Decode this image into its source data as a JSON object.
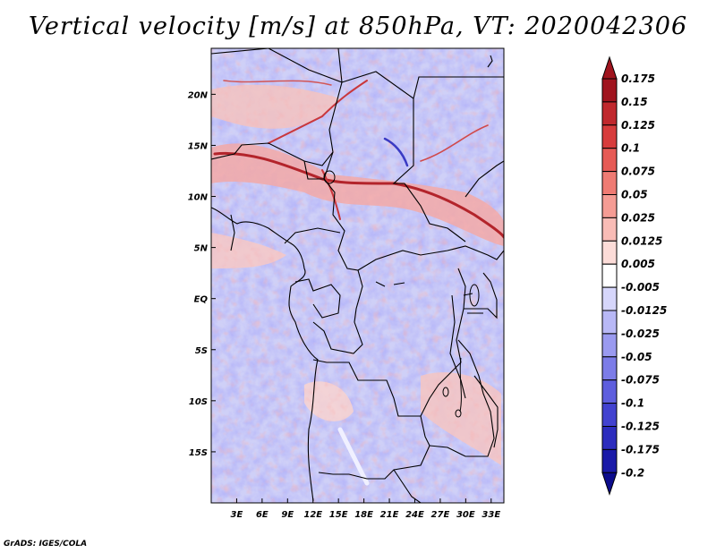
{
  "title": "Vertical velocity [m/s] at 850hPa, VT: 2020042306",
  "credit": "GrADS: IGES/COLA",
  "map": {
    "lat_range": [
      -20,
      24.5
    ],
    "lon_range": [
      0,
      34.5
    ],
    "lat_ticks": [
      {
        "label": "20N",
        "value": 20
      },
      {
        "label": "15N",
        "value": 15
      },
      {
        "label": "10N",
        "value": 10
      },
      {
        "label": "5N",
        "value": 5
      },
      {
        "label": "EQ",
        "value": 0
      },
      {
        "label": "5S",
        "value": -5
      },
      {
        "label": "10S",
        "value": -10
      },
      {
        "label": "15S",
        "value": -15
      }
    ],
    "lon_ticks": [
      {
        "label": "3E",
        "value": 3
      },
      {
        "label": "6E",
        "value": 6
      },
      {
        "label": "9E",
        "value": 9
      },
      {
        "label": "12E",
        "value": 12
      },
      {
        "label": "15E",
        "value": 15
      },
      {
        "label": "18E",
        "value": 18
      },
      {
        "label": "21E",
        "value": 21
      },
      {
        "label": "24E",
        "value": 24
      },
      {
        "label": "27E",
        "value": 27
      },
      {
        "label": "30E",
        "value": 30
      },
      {
        "label": "33E",
        "value": 33
      }
    ]
  },
  "colorbar": {
    "labels": [
      "0.175",
      "0.15",
      "0.125",
      "0.1",
      "0.075",
      "0.05",
      "0.025",
      "0.0125",
      "0.005",
      "-0.005",
      "-0.0125",
      "-0.025",
      "-0.05",
      "-0.075",
      "-0.1",
      "-0.125",
      "-0.175",
      "-0.2"
    ],
    "colors": [
      "#a0141e",
      "#c0282d",
      "#d73c3c",
      "#e65a55",
      "#ef7b73",
      "#f59c94",
      "#f9bcb6",
      "#fcdcd8",
      "#ffffff",
      "#d6d6fb",
      "#b8b8f6",
      "#9a9af0",
      "#7c7ce8",
      "#5e5ede",
      "#4242d0",
      "#2c2cbe",
      "#1a1aa8",
      "#0c0c8c"
    ],
    "top_color": "#a0141e",
    "bottom_color": "#0c0c8c"
  }
}
